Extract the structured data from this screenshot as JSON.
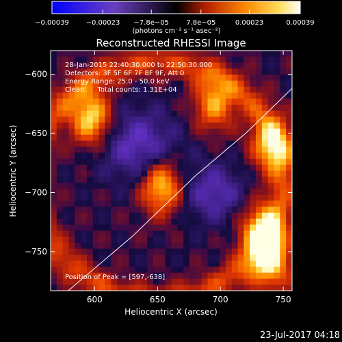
{
  "chart_data": {
    "type": "heatmap",
    "title": "Reconstructed RHESSI Image",
    "xlabel": "Heliocentric X (arcsec)",
    "ylabel": "Heliocentric Y (arcsec)",
    "xlim": [
      565,
      757
    ],
    "ylim": [
      -783,
      -580
    ],
    "x_ticks": [
      600,
      650,
      700,
      750
    ],
    "y_ticks": [
      -600,
      -650,
      -700,
      -750
    ],
    "x_tick_labels": [
      "600",
      "650",
      "700",
      "750"
    ],
    "y_tick_labels": [
      "−600",
      "−650",
      "−700",
      "−750"
    ],
    "colorbar": {
      "colormap": "blue-white-red (IDL color table 5)",
      "range": [
        -0.00039,
        0.00039
      ],
      "tick_values": [
        -0.00039,
        -0.00023,
        -7.8e-05,
        7.8e-05,
        0.00023,
        0.00039
      ],
      "tick_labels": [
        "−0.00039",
        "−0.00023",
        "−7.8e−05",
        "7.8e−05",
        "0.00023",
        "0.00039"
      ],
      "label": "(photons cm⁻² s⁻¹ asec⁻²)"
    },
    "info_lines": [
      "28-Jan-2015 22:40:30.000 to 22:50:30.000",
      "Detectors: 3F 5F 6F 7F 8F 9F, Att 0",
      "Energy Range: 25.0 - 50.0 keV",
      "Clean      Total counts: 1.31E+04"
    ],
    "peak_label": "Position of Peak = [597,-638]",
    "peak_position": [
      597,
      -638
    ],
    "sources": [
      {
        "x": 597,
        "y": -637,
        "peak": 1.0
      },
      {
        "x": 653,
        "y": -695,
        "peak": 0.95
      },
      {
        "x": 695,
        "y": -625,
        "peak": 0.75
      },
      {
        "x": 733,
        "y": -732,
        "peak": 0.95
      },
      {
        "x": 741,
        "y": -660,
        "peak": 0.8
      },
      {
        "x": 740,
        "y": -760,
        "peak": 0.9
      }
    ],
    "limb_curve": {
      "x": [
        579,
        630,
        680,
        720,
        757
      ],
      "y": [
        -783,
        -737,
        -686,
        -650,
        -612
      ]
    }
  },
  "footer": {
    "date": "23-Jul-2017 04:18"
  }
}
